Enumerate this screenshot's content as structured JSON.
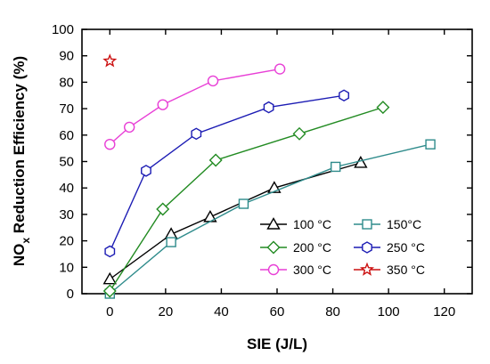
{
  "chart_data": {
    "type": "line",
    "xlabel": "SIE (J/L)",
    "ylabel": "NO",
    "ylabel_sub": "x",
    "ylabel_rest": " Reduction Efficiency (%)",
    "xlim": [
      -10,
      130
    ],
    "ylim": [
      0,
      100
    ],
    "xticks": [
      0,
      20,
      40,
      60,
      80,
      100,
      120
    ],
    "yticks": [
      0,
      10,
      20,
      30,
      40,
      50,
      60,
      70,
      80,
      90,
      100
    ],
    "grid": false,
    "legend_position": "bottom-right",
    "series": [
      {
        "name": "100 °C",
        "color": "#000000",
        "marker": "triangle",
        "x": [
          0,
          22,
          36,
          59,
          90
        ],
        "y": [
          5.5,
          22.5,
          29,
          40,
          49.5
        ]
      },
      {
        "name": "150°C",
        "color": "#2e8b8b",
        "marker": "square",
        "x": [
          0,
          22,
          48,
          81,
          115
        ],
        "y": [
          0,
          19.5,
          34,
          48,
          56.5
        ]
      },
      {
        "name": "200 °C",
        "color": "#228b22",
        "marker": "diamond",
        "x": [
          0,
          19,
          38,
          68,
          98
        ],
        "y": [
          1,
          32,
          50.5,
          60.5,
          70.5
        ]
      },
      {
        "name": "250 °C",
        "color": "#1c1cb4",
        "marker": "hexagon",
        "x": [
          0,
          13,
          31,
          57,
          84
        ],
        "y": [
          16,
          46.5,
          60.5,
          70.5,
          75
        ]
      },
      {
        "name": "300 °C",
        "color": "#e83fd6",
        "marker": "circle",
        "x": [
          0,
          7,
          19,
          37,
          61
        ],
        "y": [
          56.5,
          63,
          71.5,
          80.5,
          85
        ]
      },
      {
        "name": "350 °C",
        "color": "#cc1111",
        "marker": "star",
        "x": [
          0
        ],
        "y": [
          88
        ]
      }
    ]
  }
}
